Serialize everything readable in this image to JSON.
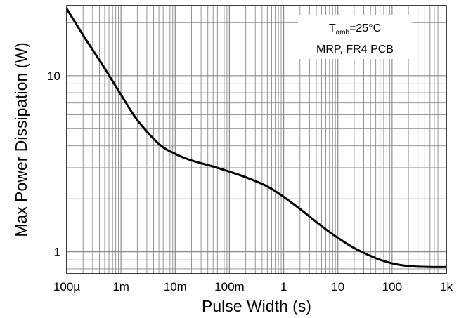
{
  "chart_data": {
    "type": "line",
    "title": "",
    "xlabel": "Pulse Width (s)",
    "ylabel": "Max Power Dissipation (W)",
    "x_scale": "log",
    "y_scale": "log",
    "xlim": [
      0.0001,
      1000
    ],
    "ylim": [
      0.75,
      25
    ],
    "grid": true,
    "x_ticks": [
      {
        "value": 0.0001,
        "label": "100µ"
      },
      {
        "value": 0.001,
        "label": "1m"
      },
      {
        "value": 0.01,
        "label": "10m"
      },
      {
        "value": 0.1,
        "label": "100m"
      },
      {
        "value": 1,
        "label": "1"
      },
      {
        "value": 10,
        "label": "10"
      },
      {
        "value": 100,
        "label": "100"
      },
      {
        "value": 1000,
        "label": "1k"
      }
    ],
    "y_ticks": [
      {
        "value": 1,
        "label": "1"
      },
      {
        "value": 10,
        "label": "10"
      }
    ],
    "annotation": {
      "line1": {
        "main": "T",
        "sub": "amb",
        "rest": "=25°C"
      },
      "line2": "MRP, FR4 PCB"
    },
    "series": [
      {
        "color": "#000000",
        "x": [
          0.0001,
          0.0002,
          0.0005,
          0.001,
          0.002,
          0.005,
          0.01,
          0.02,
          0.05,
          0.1,
          0.2,
          0.5,
          1,
          2,
          5,
          10,
          20,
          50,
          100,
          200,
          500,
          1000
        ],
        "y": [
          24,
          17,
          11,
          7.8,
          5.6,
          4.1,
          3.6,
          3.3,
          3.05,
          2.85,
          2.65,
          2.35,
          2.05,
          1.75,
          1.4,
          1.2,
          1.05,
          0.92,
          0.86,
          0.83,
          0.82,
          0.82
        ]
      }
    ]
  }
}
